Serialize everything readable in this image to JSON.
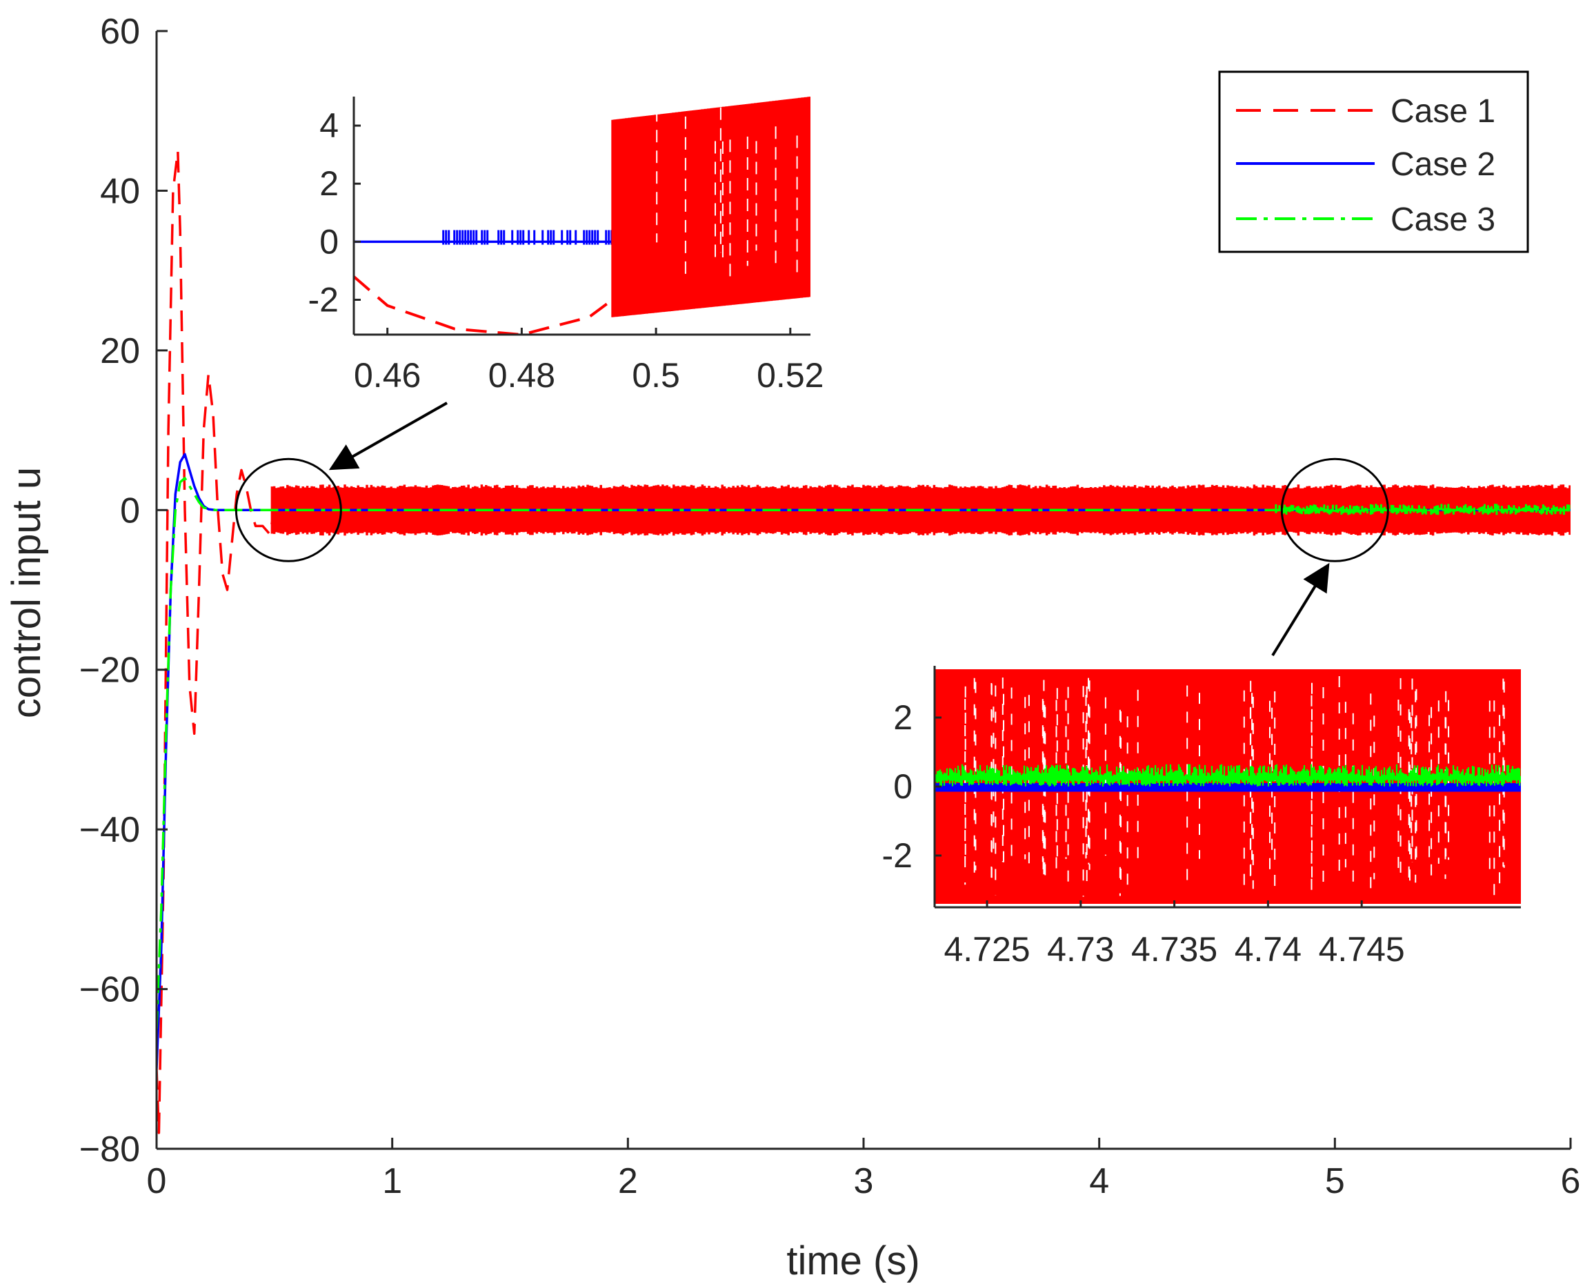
{
  "chart_data": {
    "type": "line",
    "title": "",
    "xlabel": "time (s)",
    "ylabel": "control input u",
    "xlim": [
      0,
      6
    ],
    "ylim": [
      -80,
      60
    ],
    "xticks": [
      0,
      1,
      2,
      3,
      4,
      5,
      6
    ],
    "yticks": [
      60,
      40,
      20,
      0,
      -20,
      -40,
      -60,
      -80
    ],
    "ytick_labels": [
      "60",
      "40",
      "20",
      "0",
      "−20",
      "−40",
      "−60",
      "−80"
    ],
    "legend_position": "top-right",
    "series": [
      {
        "name": "Case 1",
        "color": "#ff0000",
        "style": "dashed",
        "x": [
          0,
          0.01,
          0.03,
          0.05,
          0.07,
          0.09,
          0.1,
          0.12,
          0.14,
          0.16,
          0.18,
          0.2,
          0.22,
          0.24,
          0.26,
          0.28,
          0.3,
          0.32,
          0.34,
          0.36,
          0.38,
          0.4,
          0.42,
          0.45,
          0.48,
          0.5
        ],
        "values": [
          -70,
          -78,
          -45,
          10,
          40,
          45,
          35,
          0,
          -22,
          -28,
          -10,
          10,
          17,
          12,
          0,
          -8,
          -10,
          -4,
          2,
          5,
          3,
          0,
          -2,
          -2,
          -3,
          0
        ],
        "oscillation": {
          "from_x": 0.49,
          "to_x": 6,
          "ymin": -3.2,
          "ymax": 3.2
        }
      },
      {
        "name": "Case 2",
        "color": "#0000ff",
        "style": "solid",
        "x": [
          0,
          0.02,
          0.04,
          0.06,
          0.08,
          0.1,
          0.12,
          0.14,
          0.16,
          0.18,
          0.2,
          0.22,
          0.25,
          0.3,
          6
        ],
        "values": [
          -70,
          -55,
          -30,
          -10,
          2,
          6,
          7,
          5,
          3,
          1.5,
          0.5,
          0.1,
          0,
          0,
          0
        ]
      },
      {
        "name": "Case 3",
        "color": "#00ff00",
        "style": "dashdot",
        "x": [
          0,
          0.02,
          0.04,
          0.06,
          0.08,
          0.1,
          0.12,
          0.14,
          0.16,
          0.18,
          0.2,
          0.25,
          0.3,
          6
        ],
        "values": [
          -65,
          -50,
          -28,
          -10,
          0,
          3.5,
          4,
          3,
          2,
          1,
          0.3,
          0,
          0,
          0
        ]
      }
    ],
    "insets": [
      {
        "name": "inset-1",
        "xlim": [
          0.455,
          0.523
        ],
        "ylim": [
          -3.2,
          5
        ],
        "xticks": [
          0.46,
          0.48,
          0.5,
          0.52
        ],
        "xtick_labels": [
          "0.46",
          "0.48",
          "0.5",
          "0.52"
        ],
        "yticks": [
          4,
          2,
          0,
          -2
        ],
        "ytick_labels": [
          "4",
          "2",
          "0",
          "-2"
        ],
        "case1_curve": {
          "x": [
            0.455,
            0.46,
            0.47,
            0.48,
            0.49,
            0.4935
          ],
          "values": [
            -1.2,
            -2.2,
            -3.0,
            -3.2,
            -2.6,
            -2.0
          ]
        },
        "case1_oscillation": {
          "from_x": 0.4935,
          "to_x": 0.523,
          "ymin_start": -2.6,
          "ymin_end": -1.9,
          "ymax_start": 4.2,
          "ymax_end": 5.0
        },
        "case2_chatter": {
          "from_x": 0.4675,
          "to_x": 0.4935,
          "ymin": -0.1,
          "ymax": 0.4
        }
      },
      {
        "name": "inset-2",
        "xlim": [
          4.7222,
          4.7535
        ],
        "ylim": [
          -3.5,
          3.5
        ],
        "xticks": [
          4.725,
          4.73,
          4.735,
          4.74,
          4.745
        ],
        "xtick_labels": [
          "4.725",
          "4.73",
          "4.735",
          "4.74",
          "4.745"
        ],
        "yticks": [
          2,
          0,
          -2
        ],
        "ytick_labels": [
          "2",
          "0",
          "-2"
        ],
        "case1_band": {
          "ymin": -3.4,
          "ymax": 3.4
        },
        "case2_band": {
          "ymin": -0.15,
          "ymax": 0.1
        },
        "case3_band": {
          "ymin": 0.0,
          "ymax": 0.65
        }
      }
    ],
    "zoom_markers": [
      {
        "target": "inset-1",
        "center_x": 0.56,
        "center_y": 0
      },
      {
        "target": "inset-2",
        "center_x": 5.0,
        "center_y": 0
      }
    ]
  }
}
